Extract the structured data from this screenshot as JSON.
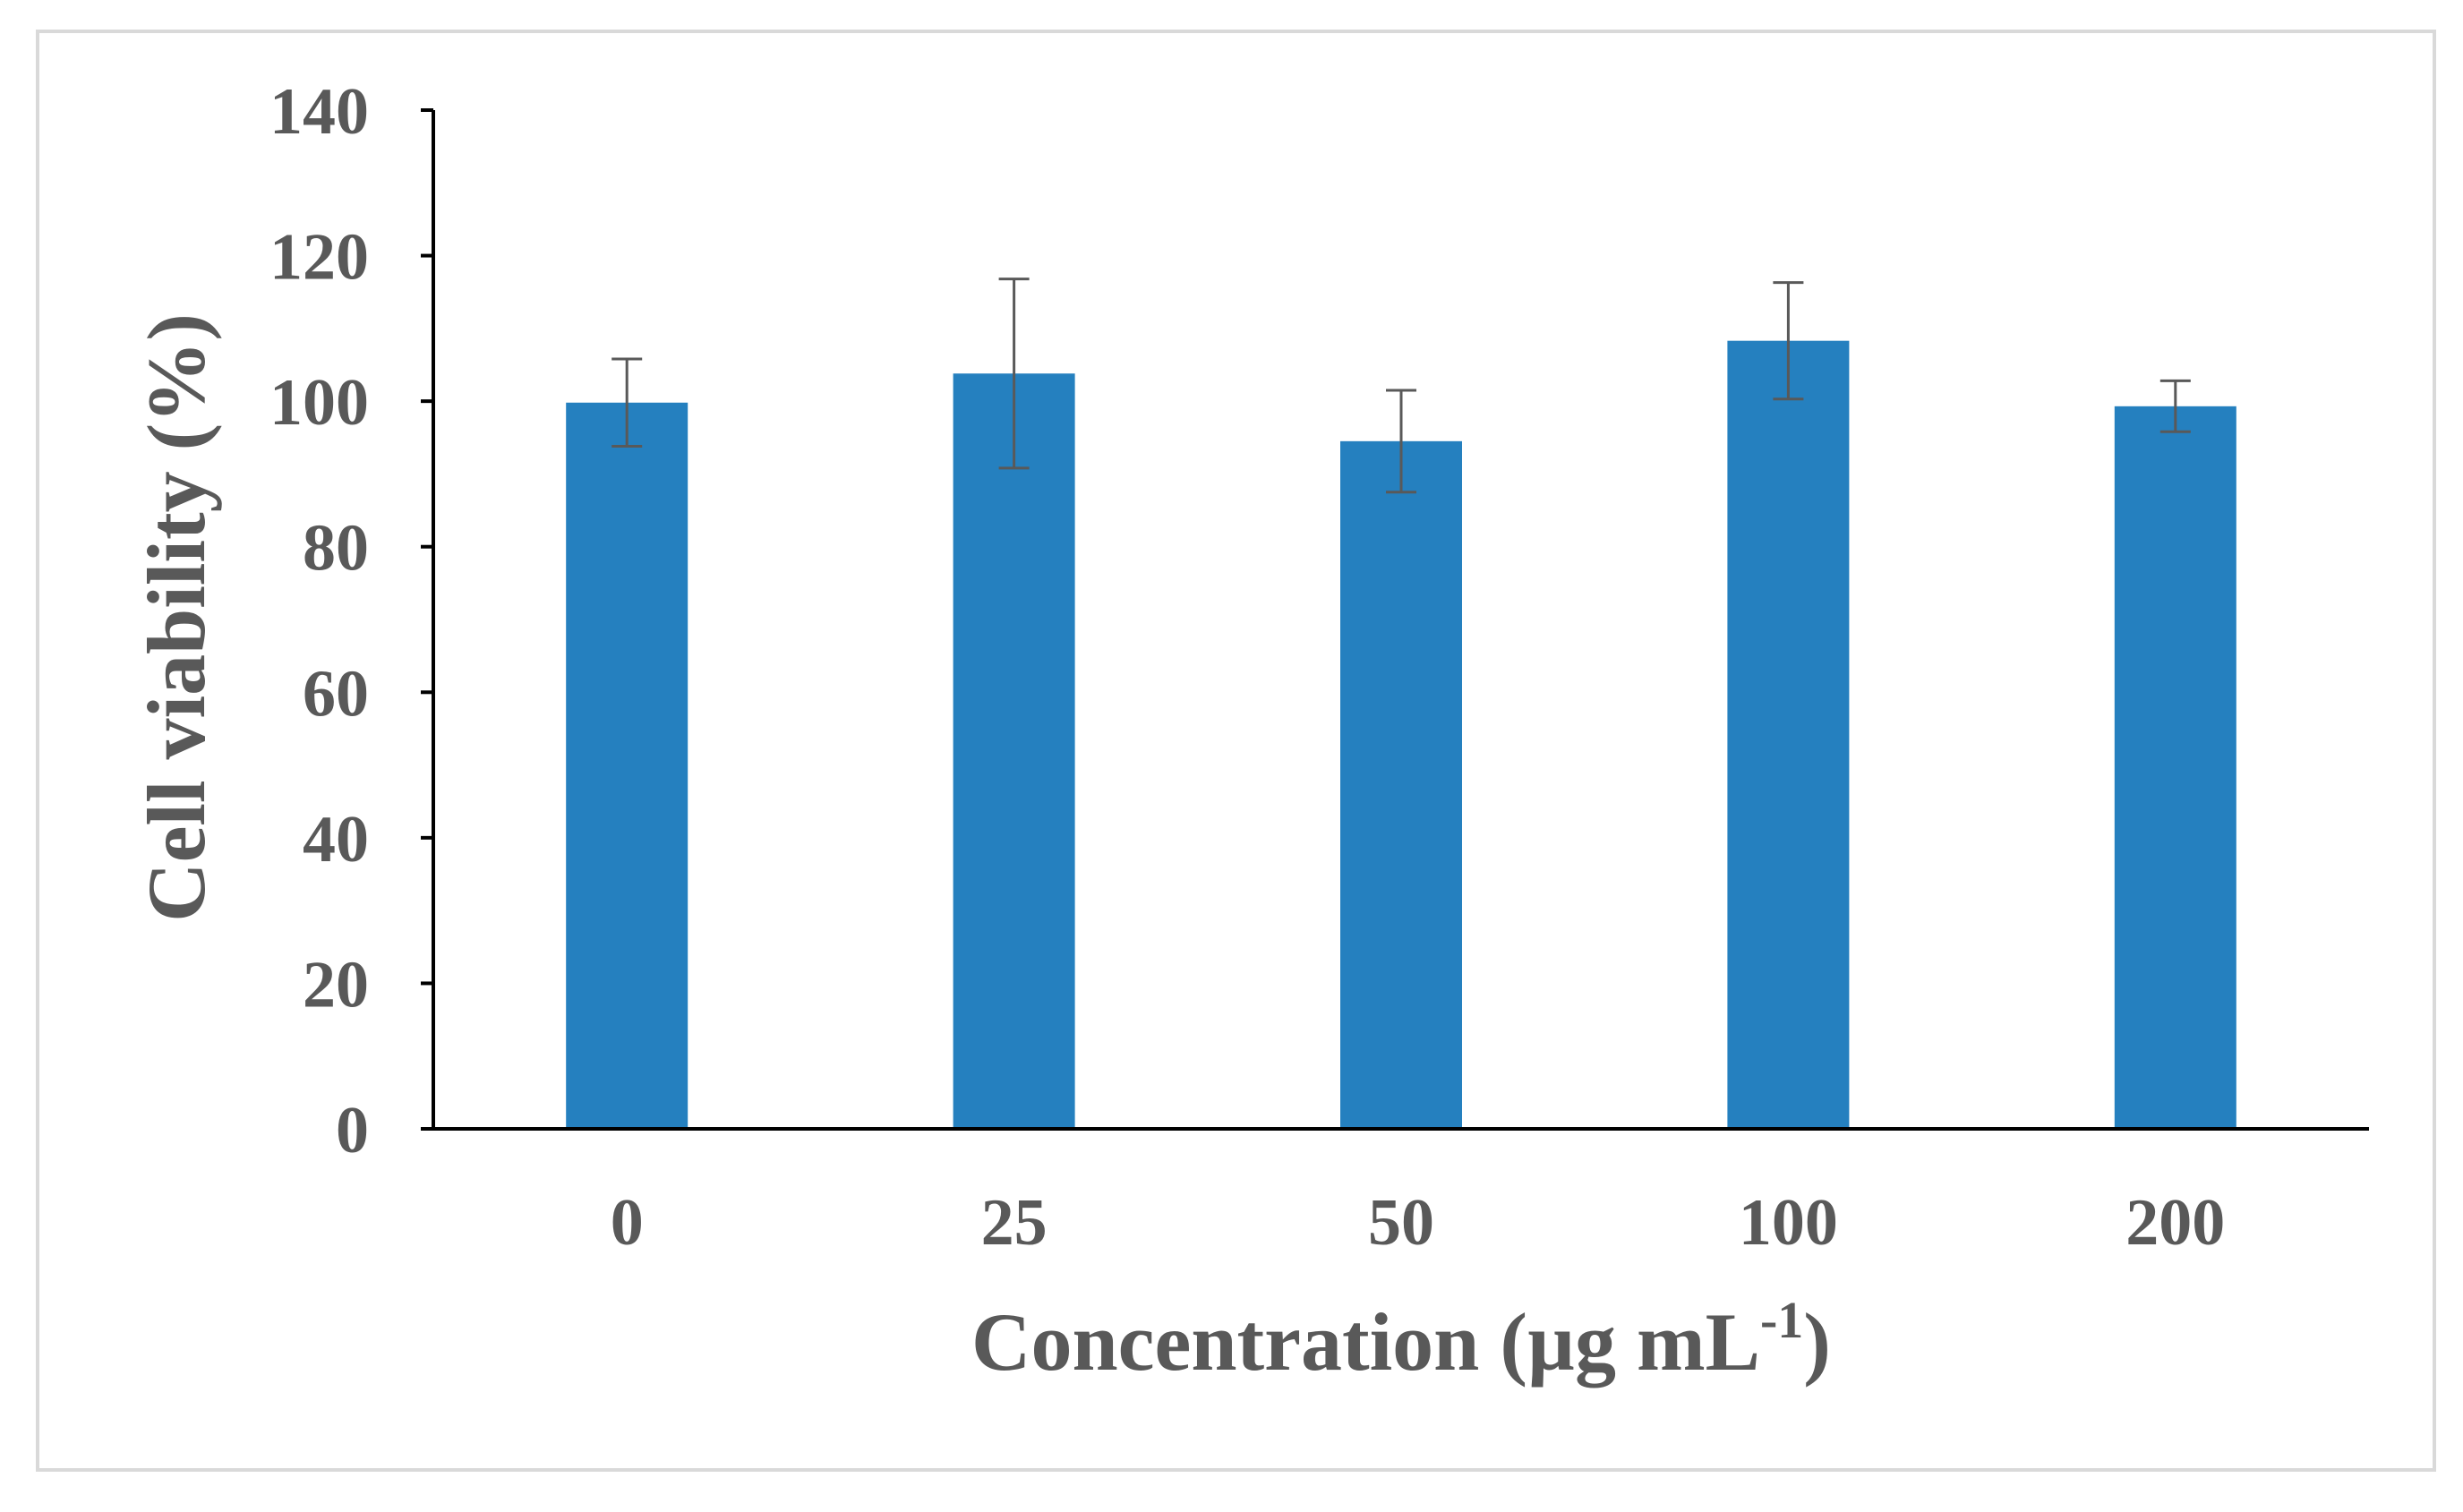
{
  "chart_data": {
    "type": "bar",
    "categories": [
      "0",
      "25",
      "50",
      "100",
      "200"
    ],
    "series": [
      {
        "name": "Cell viability",
        "values": [
          99.8,
          103.8,
          94.5,
          108.3,
          99.3
        ],
        "errors": [
          6.0,
          13.0,
          7.0,
          8.0,
          3.5
        ]
      }
    ],
    "ylim": [
      0,
      140
    ],
    "yticks": [
      "0",
      "20",
      "40",
      "60",
      "80",
      "100",
      "120",
      "140"
    ],
    "xlabel_main": "Concentration (µg mL",
    "xlabel_sup": "-1",
    "xlabel_end": ")",
    "ylabel": "Cell viability (%)",
    "grid": false,
    "legend": "none",
    "colors": {
      "bar": "#2580bf",
      "error_bar": "#595959",
      "axis": "#000000",
      "text": "#595959"
    }
  }
}
